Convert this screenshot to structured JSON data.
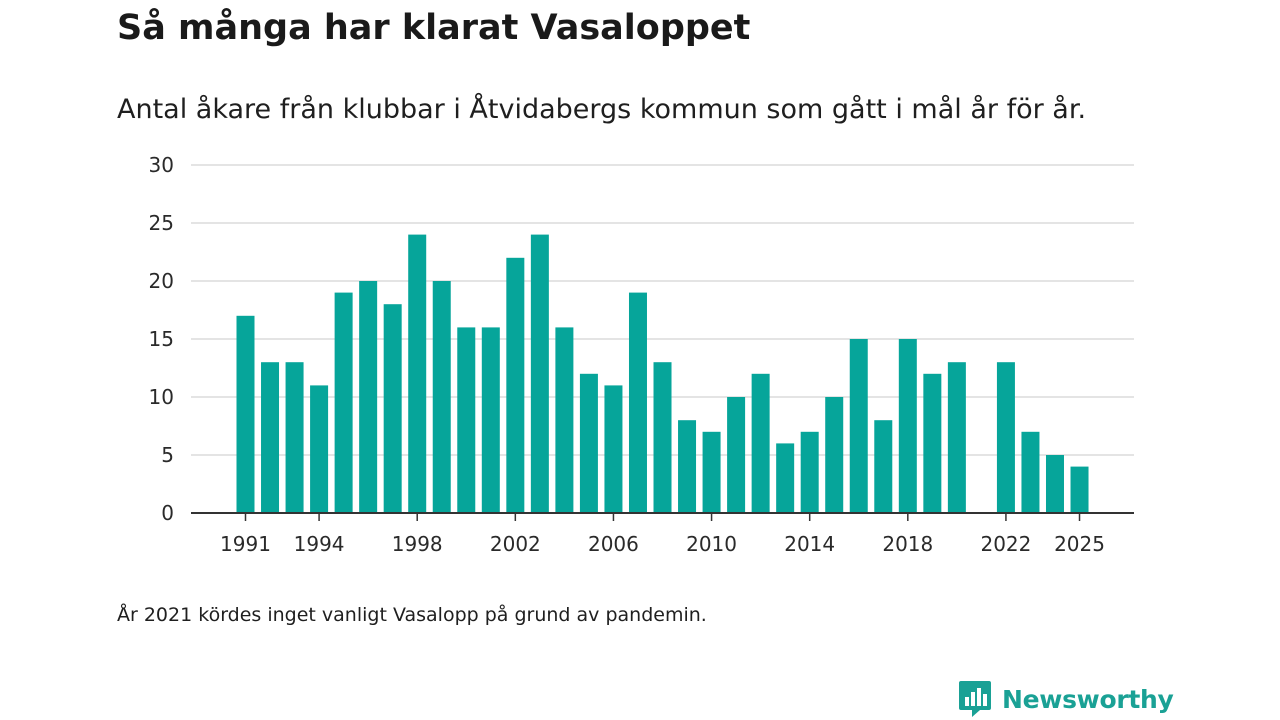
{
  "chart_data": {
    "type": "bar",
    "title": "Så många har klarat Vasaloppet",
    "subtitle": "Antal åkare från klubbar i Åtvidabergs kommun som gått i mål år för år.",
    "footnote": "År 2021 kördes inget vanligt Vasalopp på grund av pandemin.",
    "x": [
      1991,
      1992,
      1993,
      1994,
      1995,
      1996,
      1997,
      1998,
      1999,
      2000,
      2001,
      2002,
      2003,
      2004,
      2005,
      2006,
      2007,
      2008,
      2009,
      2010,
      2011,
      2012,
      2013,
      2014,
      2015,
      2016,
      2017,
      2018,
      2019,
      2020,
      2021,
      2022,
      2023,
      2024,
      2025
    ],
    "values": [
      17,
      13,
      13,
      11,
      19,
      20,
      18,
      24,
      20,
      16,
      16,
      22,
      24,
      16,
      12,
      11,
      19,
      13,
      8,
      7,
      10,
      12,
      6,
      7,
      10,
      15,
      8,
      15,
      12,
      13,
      null,
      13,
      7,
      5,
      4
    ],
    "x_tick_labels": [
      "1991",
      "1994",
      "1998",
      "2002",
      "2006",
      "2010",
      "2014",
      "2018",
      "2022",
      "2025"
    ],
    "y_ticks": [
      0,
      5,
      10,
      15,
      20,
      25,
      30
    ],
    "ylim": [
      0,
      30
    ],
    "xlabel": "",
    "ylabel": "",
    "grid": true,
    "bar_color": "#06a59a"
  },
  "brand": {
    "name": "Newsworthy",
    "color": "#1aa195",
    "icon": "bar-chart-speech-icon"
  }
}
